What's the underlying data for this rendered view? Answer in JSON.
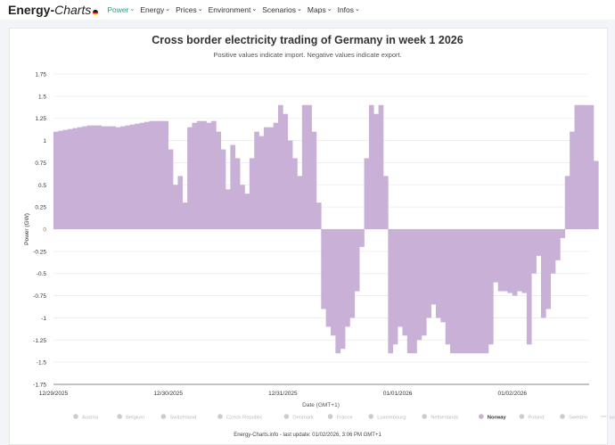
{
  "nav": {
    "logo_main": "Energy-",
    "logo_italic": "Charts",
    "items": [
      "Power",
      "Energy",
      "Prices",
      "Environment",
      "Scenarios",
      "Maps",
      "Infos"
    ],
    "active": "Power"
  },
  "footer": "Energy-Charts.info - last update: 01/02/2026, 3:06 PM GMT+1",
  "colors": {
    "series": "#c8b0d6",
    "accent": "#1fa38a",
    "zero": "#b5651d"
  },
  "chart_data": {
    "type": "area",
    "title": "Cross border electricity trading of Germany in week 1 2026",
    "subtitle": "Positive values indicate import. Negative values indicate export.",
    "xlabel": "Date (GMT+1)",
    "ylabel": "Power (GW)",
    "ylim": [
      -1.75,
      1.75
    ],
    "yticks": [
      "1.75",
      "1.5",
      "1.25",
      "1",
      "0.75",
      "0.5",
      "0.25",
      "0",
      "-0.25",
      "-0.5",
      "-0.75",
      "-1",
      "-1.25",
      "-1.5",
      "-1.75"
    ],
    "ytick_values": [
      1.75,
      1.5,
      1.25,
      1,
      0.75,
      0.5,
      0.25,
      0,
      -0.25,
      -0.5,
      -0.75,
      -1,
      -1.25,
      -1.5,
      -1.75
    ],
    "xticks": [
      "12/29/2025",
      "12/30/2025",
      "12/31/2025",
      "01/01/2026",
      "01/02/2026"
    ],
    "x_unit": "hours since 12/29/2025 00:00",
    "x_range_hours": [
      0,
      113
    ],
    "grid": true,
    "legend_position": "bottom",
    "legend": [
      {
        "name": "Austria",
        "active": false
      },
      {
        "name": "Belgium",
        "active": false
      },
      {
        "name": "Switzerland",
        "active": false
      },
      {
        "name": "Czech Republic",
        "active": false
      },
      {
        "name": "Denmark",
        "active": false
      },
      {
        "name": "France",
        "active": false
      },
      {
        "name": "Luxembourg",
        "active": false
      },
      {
        "name": "Netherlands",
        "active": false
      },
      {
        "name": "Norway",
        "active": true
      },
      {
        "name": "Poland",
        "active": false
      },
      {
        "name": "Sweden",
        "active": false
      },
      {
        "name": "sum",
        "active": false,
        "line": true
      }
    ],
    "series": [
      {
        "name": "Norway",
        "values": [
          1.1,
          1.11,
          1.12,
          1.13,
          1.14,
          1.15,
          1.16,
          1.17,
          1.17,
          1.17,
          1.16,
          1.16,
          1.16,
          1.15,
          1.16,
          1.17,
          1.18,
          1.19,
          1.2,
          1.21,
          1.22,
          1.22,
          1.22,
          1.22,
          0.9,
          0.5,
          0.6,
          0.3,
          1.15,
          1.2,
          1.22,
          1.22,
          1.2,
          1.22,
          1.1,
          0.9,
          0.45,
          0.95,
          0.8,
          0.5,
          0.4,
          0.8,
          1.1,
          1.05,
          1.15,
          1.15,
          1.2,
          1.4,
          1.3,
          1.0,
          0.8,
          0.6,
          1.4,
          1.4,
          1.1,
          0.3,
          -0.9,
          -1.1,
          -1.2,
          -1.4,
          -1.35,
          -1.1,
          -1.0,
          -0.7,
          -0.2,
          0.8,
          1.4,
          1.3,
          1.4,
          0.6,
          -1.4,
          -1.3,
          -1.1,
          -1.2,
          -1.4,
          -1.4,
          -1.25,
          -1.2,
          -1.0,
          -0.85,
          -1.0,
          -1.05,
          -1.3,
          -1.4,
          -1.4,
          -1.4,
          -1.4,
          -1.4,
          -1.4,
          -1.4,
          -1.4,
          -1.3,
          -0.6,
          -0.7,
          -0.7,
          -0.72,
          -0.75,
          -0.7,
          -0.72,
          -1.3,
          -0.5,
          -0.3,
          -1.0,
          -0.9,
          -0.5,
          -0.35,
          -0.1,
          0.6,
          1.1,
          1.4,
          1.4,
          1.4,
          1.4,
          0.77
        ]
      }
    ]
  }
}
